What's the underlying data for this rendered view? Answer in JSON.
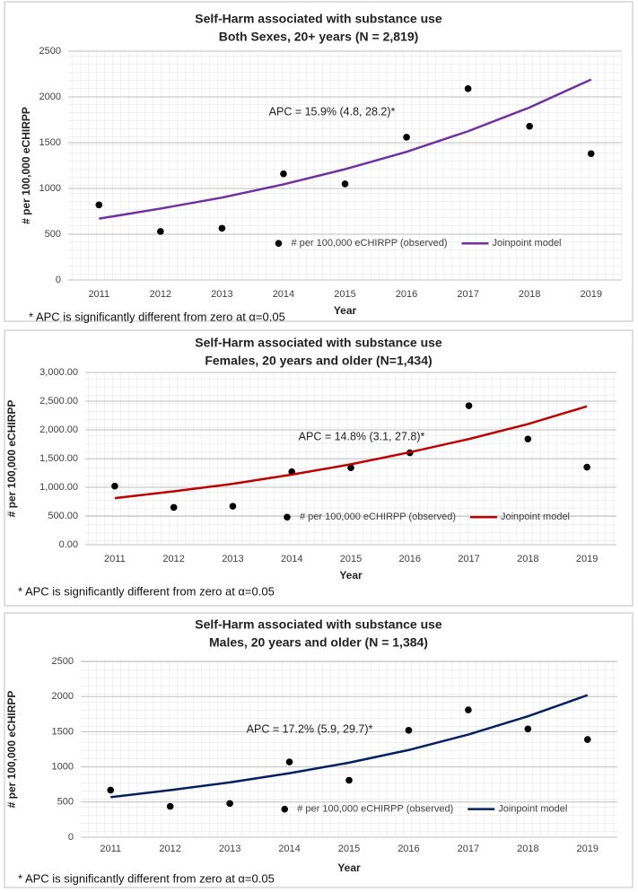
{
  "chart_data": [
    {
      "type": "line",
      "title": "Self-Harm associated with substance use",
      "subtitle": "Both Sexes, 20+ years (N = 2,819)",
      "x_label": "Year",
      "y_label": "# per 100,000 eCHIRPP",
      "annotation": "APC = 15.9% (4.8, 28.2)*",
      "footnote": "* APC is significantly different from zero at α=0.05",
      "categories": [
        "2011",
        "2012",
        "2013",
        "2014",
        "2015",
        "2016",
        "2017",
        "2018",
        "2019"
      ],
      "series": [
        {
          "name": "# per 100,000 eCHIRPP (observed)",
          "type": "scatter",
          "color": "#000000",
          "values": [
            820,
            530,
            565,
            1160,
            1050,
            1560,
            2090,
            1680,
            1380
          ]
        },
        {
          "name": "Joinpoint model",
          "type": "line",
          "color": "#7030a0",
          "values": [
            670,
            780,
            900,
            1045,
            1210,
            1400,
            1625,
            1885,
            2190
          ]
        }
      ],
      "ylim": [
        0,
        2500
      ],
      "yticks": [
        0,
        500,
        1000,
        1500,
        2000,
        2500
      ],
      "grid": true,
      "legend": "lower center"
    },
    {
      "type": "line",
      "title": "Self-Harm associated with substance use",
      "subtitle": "Females, 20 years and older (N=1,434)",
      "x_label": "Year",
      "y_label": "# per 100,000 eCHIRPP",
      "annotation": "APC = 14.8% (3.1, 27.8)*",
      "footnote": "* APC is significantly different from zero at α=0.05",
      "categories": [
        "2011",
        "2012",
        "2013",
        "2014",
        "2015",
        "2016",
        "2017",
        "2018",
        "2019"
      ],
      "series": [
        {
          "name": "# per 100,000 eCHIRPP (observed)",
          "type": "scatter",
          "color": "#000000",
          "values": [
            1020,
            650,
            670,
            1270,
            1340,
            1600,
            2420,
            1840,
            1350
          ]
        },
        {
          "name": "Joinpoint model",
          "type": "line",
          "color": "#c00000",
          "values": [
            810,
            930,
            1060,
            1220,
            1400,
            1610,
            1840,
            2100,
            2410
          ]
        }
      ],
      "ylim": [
        0,
        3000
      ],
      "yticks": [
        {
          "value": 0,
          "label": "0.00"
        },
        {
          "value": 500,
          "label": "500.00"
        },
        {
          "value": 1000,
          "label": "1,000.00"
        },
        {
          "value": 1500,
          "label": "1,500.00"
        },
        {
          "value": 2000,
          "label": "2,000.00"
        },
        {
          "value": 2500,
          "label": "2,500.00"
        },
        {
          "value": 3000,
          "label": "3,000.00"
        }
      ],
      "grid": true,
      "legend": "lower center"
    },
    {
      "type": "line",
      "title": "Self-Harm associated with substance use",
      "subtitle": "Males, 20 years and older (N = 1,384)",
      "x_label": "Year",
      "y_label": "# per 100,000 eCHIRPP",
      "annotation": "APC = 17.2% (5.9, 29.7)*",
      "footnote": "* APC is significantly different from zero at α=0.05",
      "categories": [
        "2011",
        "2012",
        "2013",
        "2014",
        "2015",
        "2016",
        "2017",
        "2018",
        "2019"
      ],
      "series": [
        {
          "name": "# per 100,000 eCHIRPP (observed)",
          "type": "scatter",
          "color": "#000000",
          "values": [
            670,
            440,
            480,
            1070,
            810,
            1520,
            1810,
            1540,
            1390
          ]
        },
        {
          "name": "Joinpoint model",
          "type": "line",
          "color": "#002060",
          "values": [
            570,
            670,
            780,
            910,
            1060,
            1240,
            1460,
            1720,
            2020
          ]
        }
      ],
      "ylim": [
        0,
        2500
      ],
      "yticks": [
        0,
        500,
        1000,
        1500,
        2000,
        2500
      ],
      "grid": true,
      "legend": "lower center"
    }
  ]
}
